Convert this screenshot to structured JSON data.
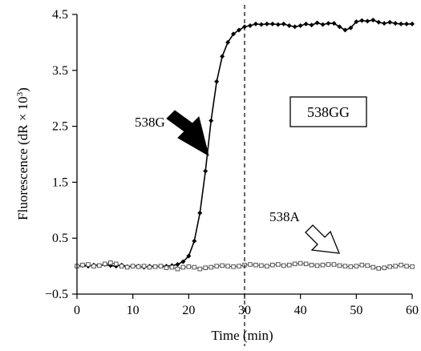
{
  "chart_data": {
    "type": "line",
    "x_axis": {
      "label": "Time (min)",
      "range": [
        0,
        60
      ],
      "ticks": [
        0,
        10,
        20,
        30,
        40,
        50,
        60
      ]
    },
    "y_axis": {
      "label_main": "Fluorescence (dR × 10",
      "label_exp": "3",
      "label_close": ")",
      "range": [
        -0.5,
        4.5
      ],
      "ticks": [
        "-0.5",
        "0.5",
        "1.5",
        "2.5",
        "3.5",
        "4.5"
      ]
    },
    "reference_line": {
      "x": 30,
      "style": "dashed"
    },
    "grid": false,
    "boxed_label": "538GG",
    "annotations": [
      {
        "text": "538G",
        "arrow": "filled"
      },
      {
        "text": "538A",
        "arrow": "hollow"
      }
    ],
    "series": [
      {
        "name": "538G",
        "marker": "filled-diamond",
        "color": "#000000",
        "x": [
          0,
          1,
          2,
          3,
          4,
          5,
          6,
          7,
          8,
          9,
          10,
          11,
          12,
          13,
          14,
          15,
          16,
          17,
          18,
          19,
          20,
          21,
          22,
          23,
          24,
          25,
          26,
          27,
          28,
          29,
          30,
          31,
          32,
          33,
          34,
          35,
          36,
          37,
          38,
          39,
          40,
          41,
          42,
          43,
          44,
          45,
          46,
          47,
          48,
          49,
          50,
          51,
          52,
          53,
          54,
          55,
          56,
          57,
          58,
          59,
          60
        ],
        "y": [
          0.0,
          0.01,
          0.0,
          0.02,
          0.01,
          0.03,
          0.01,
          0.0,
          0.02,
          -0.01,
          0.0,
          0.0,
          -0.02,
          0.0,
          -0.01,
          0.0,
          0.0,
          0.01,
          0.03,
          0.08,
          0.18,
          0.45,
          0.95,
          1.7,
          2.6,
          3.3,
          3.75,
          4.0,
          4.15,
          4.22,
          4.28,
          4.3,
          4.33,
          4.32,
          4.33,
          4.33,
          4.32,
          4.33,
          4.3,
          4.28,
          4.3,
          4.33,
          4.31,
          4.35,
          4.32,
          4.34,
          4.34,
          4.28,
          4.22,
          4.26,
          4.37,
          4.39,
          4.38,
          4.4,
          4.36,
          4.34,
          4.36,
          4.34,
          4.33,
          4.33,
          4.33
        ]
      },
      {
        "name": "538A",
        "marker": "open-square",
        "color": "#555555",
        "x": [
          0,
          1,
          2,
          3,
          4,
          5,
          6,
          7,
          8,
          9,
          10,
          11,
          12,
          13,
          14,
          15,
          16,
          17,
          18,
          19,
          20,
          21,
          22,
          23,
          24,
          25,
          26,
          27,
          28,
          29,
          30,
          31,
          32,
          33,
          34,
          35,
          36,
          37,
          38,
          39,
          40,
          41,
          42,
          43,
          44,
          45,
          46,
          47,
          48,
          49,
          50,
          51,
          52,
          53,
          54,
          55,
          56,
          57,
          58,
          59,
          60
        ],
        "y": [
          0.0,
          0.02,
          0.03,
          0.0,
          0.01,
          0.04,
          0.06,
          0.04,
          0.0,
          -0.02,
          0.0,
          -0.01,
          0.0,
          -0.02,
          -0.01,
          0.0,
          -0.03,
          -0.02,
          -0.05,
          -0.02,
          -0.01,
          -0.02,
          -0.05,
          -0.03,
          -0.02,
          0.0,
          0.01,
          0.0,
          -0.01,
          0.0,
          0.02,
          0.03,
          0.02,
          0.01,
          0.0,
          0.02,
          0.03,
          0.01,
          0.02,
          0.04,
          0.05,
          0.04,
          0.02,
          0.01,
          0.02,
          0.03,
          0.03,
          0.01,
          0.0,
          -0.01,
          0.0,
          0.02,
          0.01,
          -0.02,
          -0.04,
          -0.03,
          -0.01,
          0.0,
          0.02,
          0.0,
          -0.01
        ]
      }
    ]
  }
}
